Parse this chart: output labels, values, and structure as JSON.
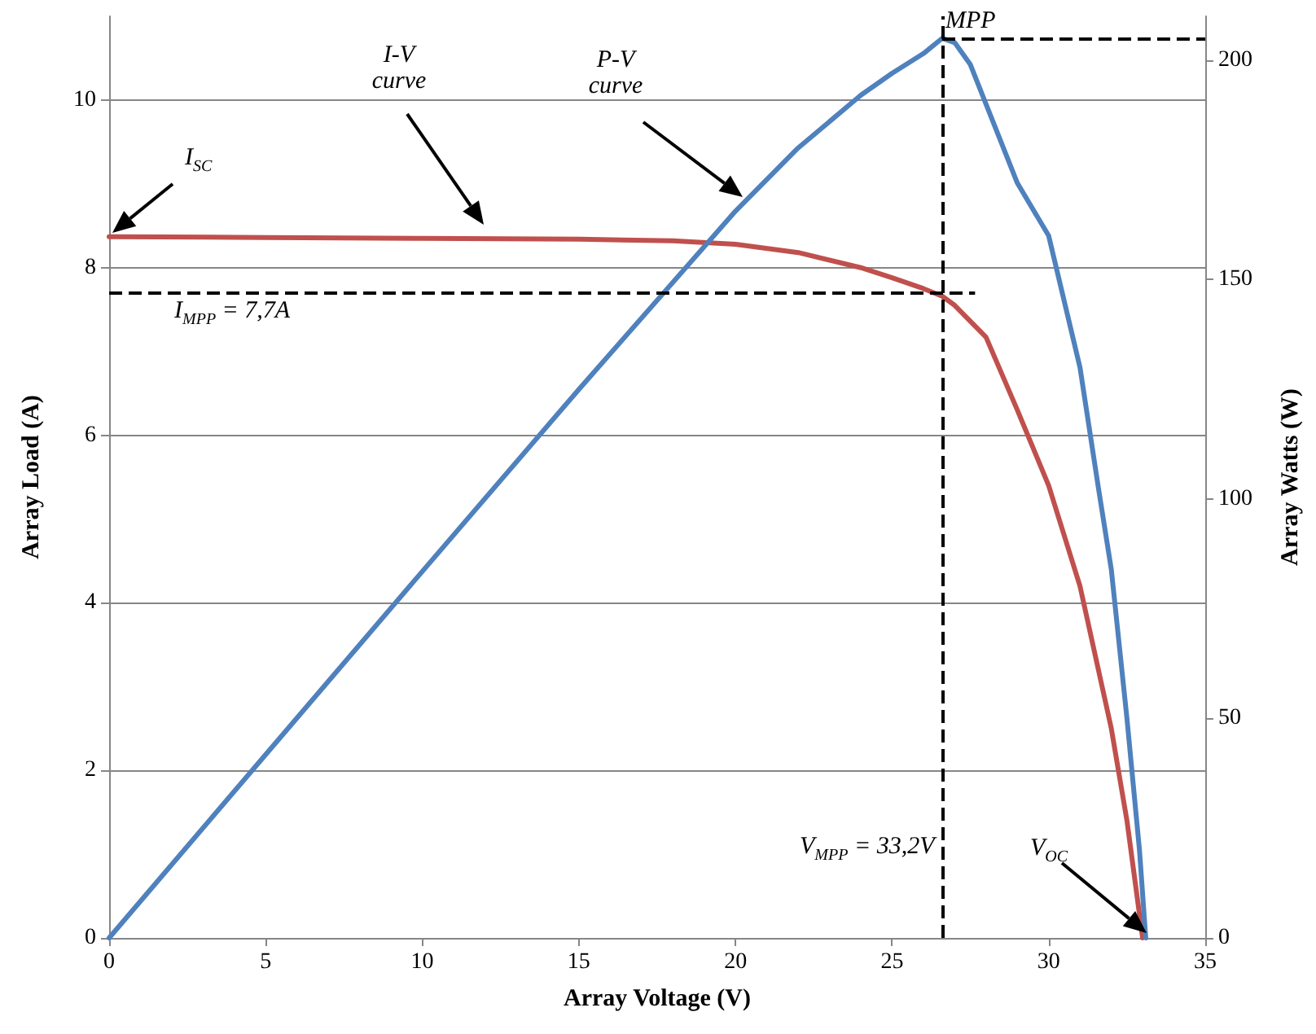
{
  "chart_data": {
    "type": "line",
    "xlabel": "Array Voltage (V)",
    "ylabel": "Array Load (A)",
    "y2label": "Array Watts (W)",
    "xlim": [
      0,
      35
    ],
    "xticks": [
      0,
      5,
      10,
      15,
      20,
      25,
      30,
      35
    ],
    "ylim": [
      0,
      11
    ],
    "yticks": [
      0,
      2,
      4,
      6,
      8,
      10
    ],
    "y2lim": [
      0,
      210
    ],
    "y2ticks": [
      0,
      50,
      100,
      150,
      200
    ],
    "grid": "y",
    "marker": "none",
    "line_style": "solid",
    "series": [
      {
        "color": "#c0504d",
        "x": [
          0,
          5,
          10,
          15,
          18,
          20,
          22,
          24,
          25,
          26,
          26.6,
          27,
          28,
          29,
          30,
          31,
          32,
          32.5,
          33
        ],
        "values": [
          8.37,
          8.36,
          8.35,
          8.34,
          8.32,
          8.28,
          8.18,
          8.0,
          7.88,
          7.75,
          7.66,
          7.55,
          7.17,
          6.3,
          5.4,
          4.2,
          2.5,
          1.4,
          0
        ]
      },
      {
        "color": "#4f81bd",
        "axis": "y2",
        "x": [
          0,
          5,
          10,
          15,
          20,
          22,
          24,
          25,
          26,
          26.6,
          27,
          27.5,
          28,
          29,
          30,
          31,
          31.6,
          32,
          32.5,
          32.9,
          33.1
        ],
        "values": [
          0,
          41.8,
          83.5,
          125,
          165.6,
          180,
          192,
          197,
          201.5,
          205,
          204,
          199,
          190,
          172,
          160,
          130,
          102,
          84,
          50,
          20,
          0
        ]
      }
    ],
    "ref_lines": [
      {
        "axis": "y",
        "value": 7.7,
        "label": "I$_{MPP}$ = 7,7A",
        "color": "#000000",
        "line_style": "dashed"
      },
      {
        "axis": "x",
        "value": 26.6,
        "color": "#000000",
        "line_style": "dashed"
      },
      {
        "axis": "y2",
        "value": 205,
        "label": "MPP",
        "color": "#000000",
        "line_style": "dashed"
      }
    ],
    "annotations": [
      "I$_{SC}$",
      "I-V curve",
      "P-V curve",
      "V$_{OC}$",
      "V$_{MPP}$ = 33,2V"
    ]
  }
}
